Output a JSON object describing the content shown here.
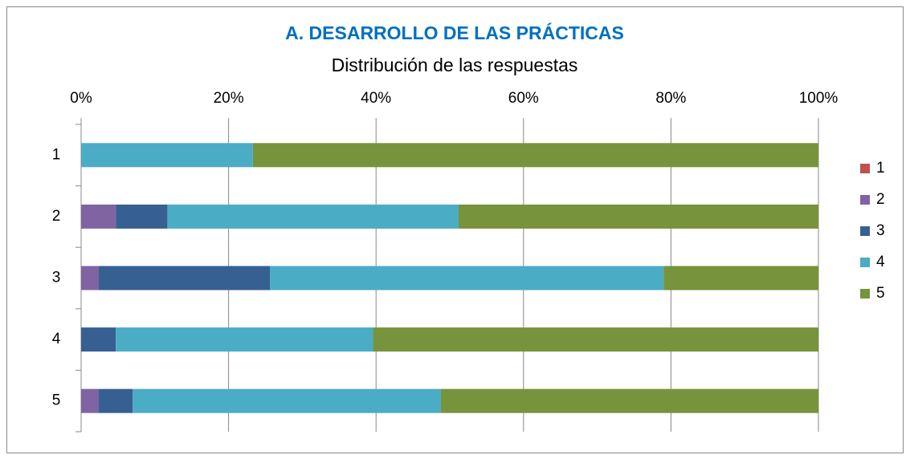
{
  "chart_data": {
    "type": "stacked_bar_horizontal",
    "title": "A.  DESARROLLO DE LAS PRÁCTICAS",
    "subtitle": "Distribución de las respuestas",
    "categories": [
      "1",
      "2",
      "3",
      "4",
      "5"
    ],
    "series": [
      {
        "name": "1",
        "color": "#c0504d",
        "values": [
          0,
          0,
          0,
          0,
          0
        ]
      },
      {
        "name": "2",
        "color": "#8064a2",
        "values": [
          0,
          4.7,
          2.4,
          0,
          2.4
        ]
      },
      {
        "name": "3",
        "color": "#376092",
        "values": [
          0,
          7.0,
          23.2,
          4.7,
          4.6
        ]
      },
      {
        "name": "4",
        "color": "#4bacc6",
        "values": [
          23.3,
          39.5,
          53.4,
          34.9,
          41.8
        ]
      },
      {
        "name": "5",
        "color": "#77933c",
        "values": [
          76.7,
          48.8,
          21.0,
          60.4,
          51.2
        ]
      }
    ],
    "xlim": [
      0,
      100
    ],
    "xticks": [
      {
        "value": 0,
        "label": "0%"
      },
      {
        "value": 20,
        "label": "20%"
      },
      {
        "value": 40,
        "label": "40%"
      },
      {
        "value": 60,
        "label": "60%"
      },
      {
        "value": 80,
        "label": "80%"
      },
      {
        "value": 100,
        "label": "100%"
      }
    ],
    "grid": true,
    "legend": "right"
  }
}
